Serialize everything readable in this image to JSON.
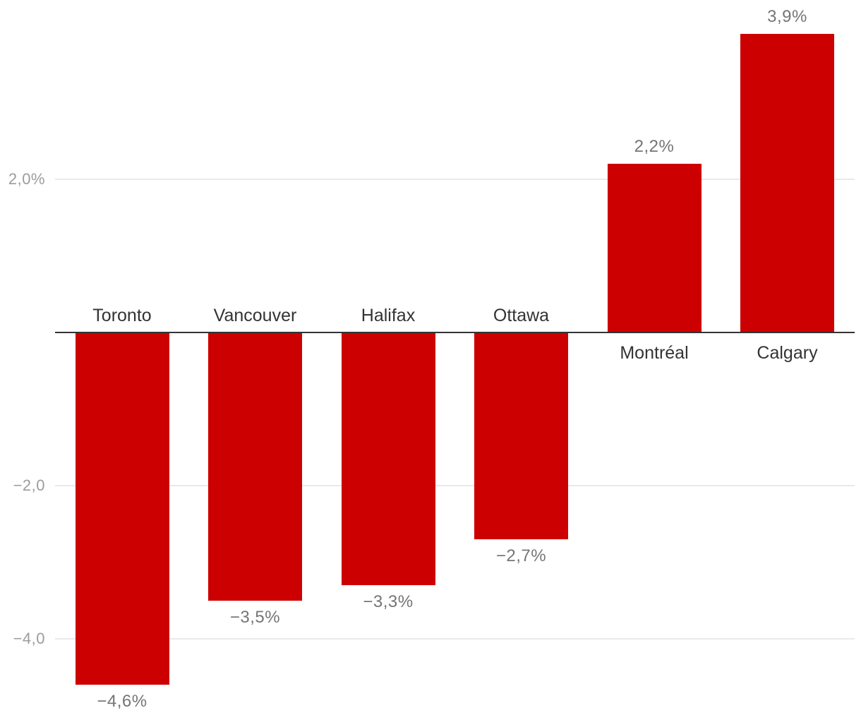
{
  "chart_data": {
    "type": "bar",
    "categories": [
      "Toronto",
      "Vancouver",
      "Halifax",
      "Ottawa",
      "Montréal",
      "Calgary"
    ],
    "values": [
      -4.6,
      -3.5,
      -3.3,
      -2.7,
      2.2,
      3.9
    ],
    "value_labels": [
      "−4,6%",
      "−3,5%",
      "−3,3%",
      "−2,7%",
      "2,2%",
      "3,9%"
    ],
    "title": "",
    "xlabel": "",
    "ylabel": "",
    "ylim": [
      -5.0,
      4.2
    ],
    "grid": "horizontal",
    "legend": "none",
    "y_axis_ticks": [
      {
        "value": 2.0,
        "label": "2,0%"
      },
      {
        "value": -2.0,
        "label": "−2,0"
      },
      {
        "value": -4.0,
        "label": "−4,0"
      }
    ],
    "colors": {
      "bar": "#cc0000",
      "zero_line": "#333333",
      "gridline": "#e9e9e9",
      "city_label": "#333333",
      "value_label": "#757575",
      "tick_label": "#9c9c9c",
      "background": "#ffffff"
    }
  }
}
